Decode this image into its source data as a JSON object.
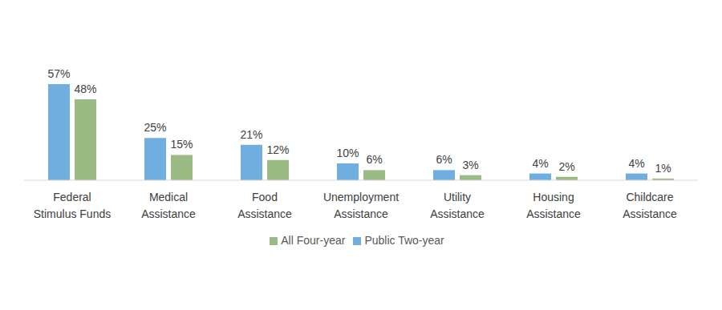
{
  "chart_data": {
    "type": "bar",
    "categories": [
      "Federal Stimulus Funds",
      "Medical Assistance",
      "Food Assistance",
      "Unemployment Assistance",
      "Utility Assistance",
      "Housing Assistance",
      "Childcare Assistance"
    ],
    "series": [
      {
        "name": "Public Two-year",
        "color": "#6FAEDF",
        "values": [
          57,
          25,
          21,
          10,
          6,
          4,
          4
        ],
        "value_labels": [
          "57%",
          "25%",
          "21%",
          "10%",
          "6%",
          "4%",
          "4%"
        ]
      },
      {
        "name": "All Four-year",
        "color": "#9BBB84",
        "values": [
          48,
          15,
          12,
          6,
          3,
          2,
          1
        ],
        "value_labels": [
          "48%",
          "15%",
          "12%",
          "6%",
          "3%",
          "2%",
          "1%"
        ]
      }
    ],
    "data_labels": true,
    "tick_labels": "x",
    "legend": "bottom",
    "grid": false
  }
}
